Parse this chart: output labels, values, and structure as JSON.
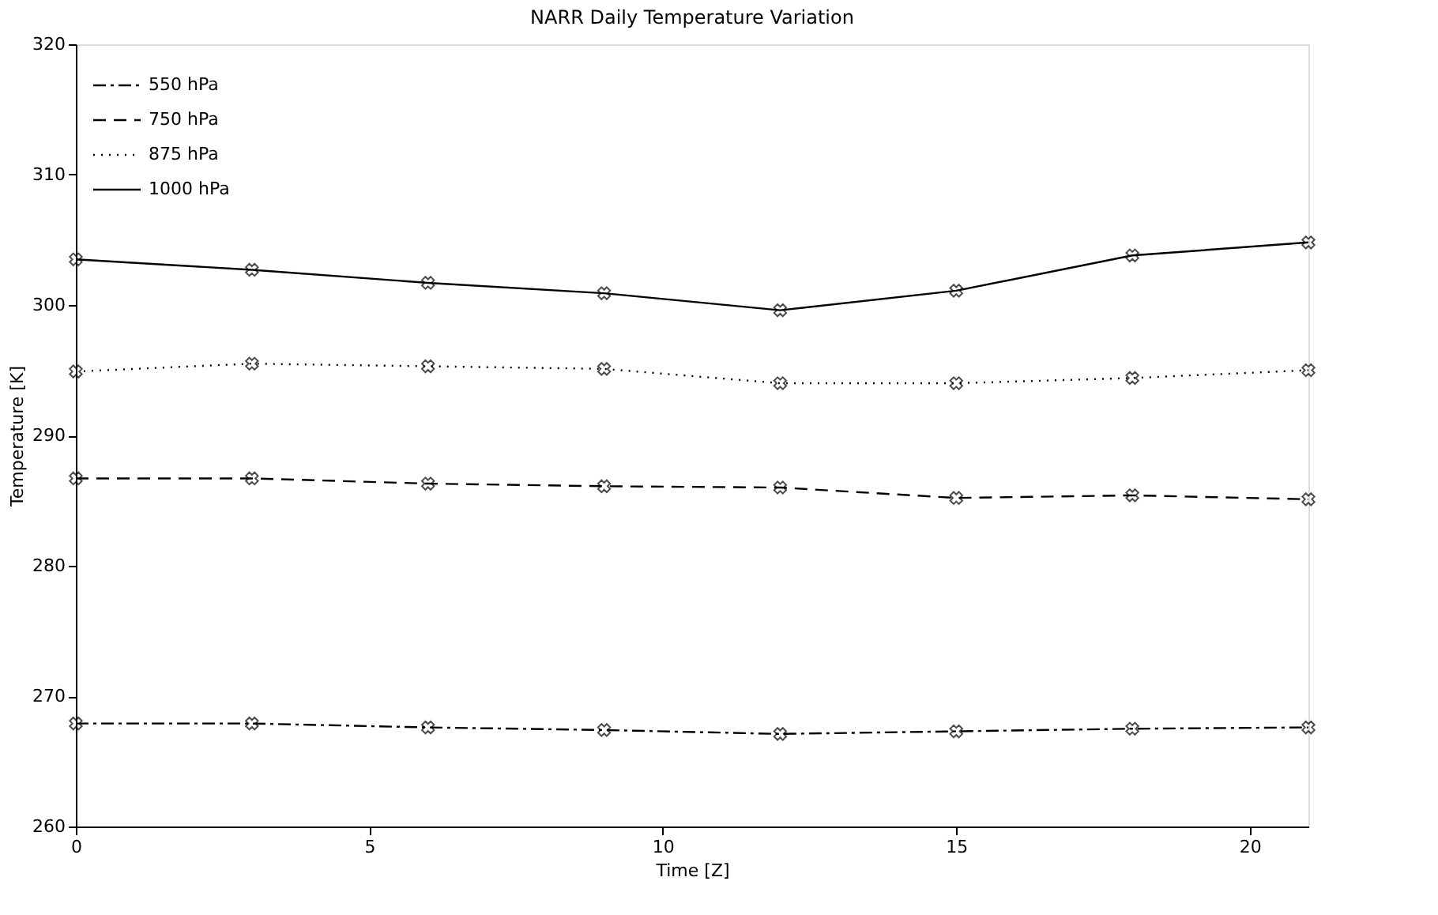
{
  "chart_data": {
    "type": "line",
    "title": "NARR Daily Temperature Variation",
    "xlabel": "Time [Z]",
    "ylabel": "Temperature [K]",
    "x": [
      0,
      3,
      6,
      9,
      12,
      15,
      18,
      21
    ],
    "series": [
      {
        "name": "550 hPa",
        "color": "#000000",
        "line_style": "dashdot",
        "values": [
          267.9,
          267.9,
          267.6,
          267.4,
          267.1,
          267.3,
          267.5,
          267.6
        ]
      },
      {
        "name": "750 hPa",
        "color": "#000000",
        "line_style": "dashed",
        "values": [
          286.7,
          286.7,
          286.3,
          286.1,
          286.0,
          285.2,
          285.4,
          285.1
        ]
      },
      {
        "name": "875 hPa",
        "color": "#000000",
        "line_style": "dotted",
        "values": [
          294.9,
          295.5,
          295.3,
          295.1,
          294.0,
          294.0,
          294.4,
          295.0
        ]
      },
      {
        "name": "1000 hPa",
        "color": "#000000",
        "line_style": "solid",
        "values": [
          303.5,
          302.7,
          301.7,
          300.9,
          299.6,
          301.1,
          303.8,
          304.8
        ]
      }
    ],
    "xlim": [
      0,
      21
    ],
    "xticks": [
      0,
      5,
      10,
      15,
      20
    ],
    "ylim": [
      260,
      320
    ],
    "yticks": [
      260,
      270,
      280,
      290,
      300,
      310,
      320
    ],
    "marker": "cross",
    "grid": false,
    "legend": "top left"
  }
}
